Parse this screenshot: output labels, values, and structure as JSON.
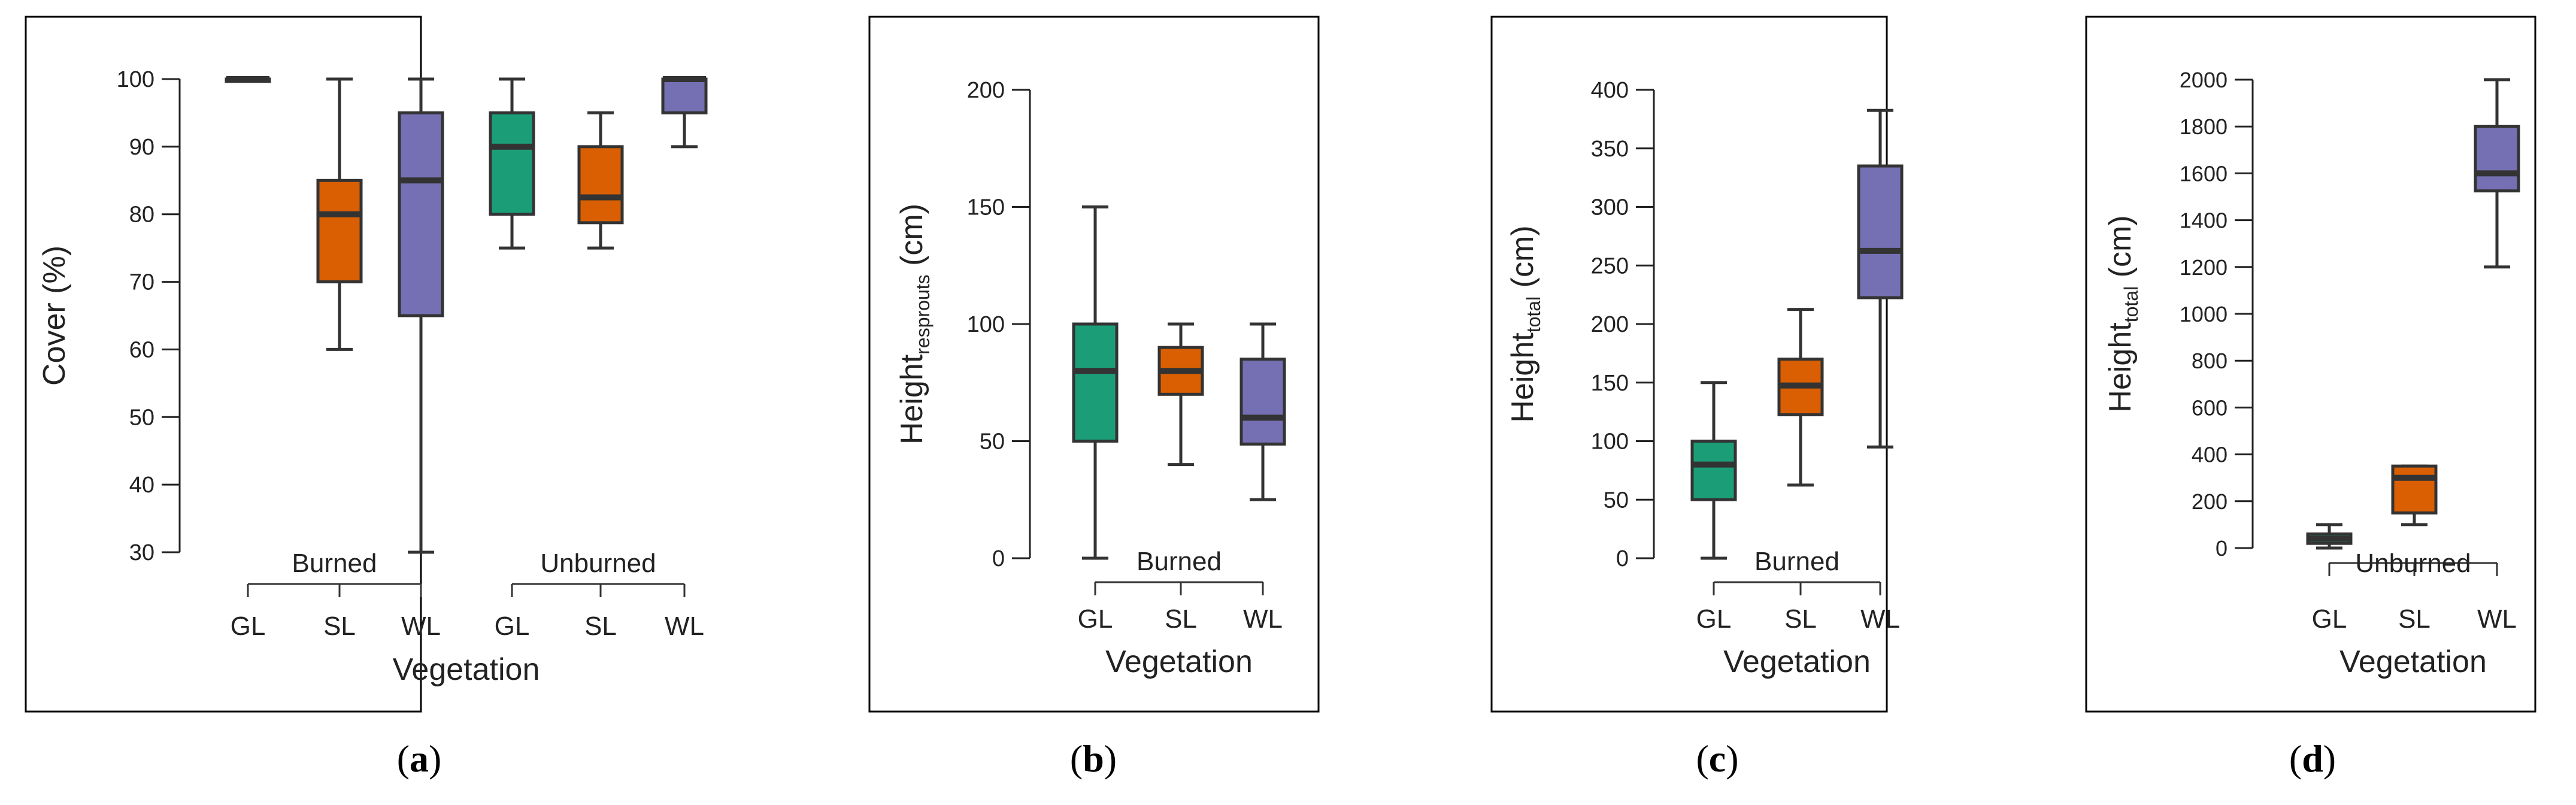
{
  "colors": {
    "GL": "#1b9e77",
    "SL": "#d95f02",
    "WL": "#7570b3",
    "stroke": "#333333",
    "frame": "#000000"
  },
  "chart_data": [
    {
      "panel": "a",
      "type": "boxplot",
      "ylabel": "Cover (%)",
      "ylabel_sub": "",
      "xlabel": "Vegetation",
      "ylim": [
        30,
        100
      ],
      "yticks": [
        30,
        40,
        50,
        60,
        70,
        80,
        90,
        100
      ],
      "categories": [
        "GL",
        "SL",
        "WL",
        "GL",
        "SL",
        "WL"
      ],
      "groups": [
        {
          "label": "Burned",
          "from": 0,
          "to": 2
        },
        {
          "label": "Unburned",
          "from": 3,
          "to": 5
        }
      ],
      "boxes": [
        {
          "category": "GL",
          "group": "Burned",
          "min": 100,
          "q1": 100,
          "median": 100,
          "q3": 100,
          "max": 100
        },
        {
          "category": "SL",
          "group": "Burned",
          "min": 60,
          "q1": 70,
          "median": 80,
          "q3": 85,
          "max": 100
        },
        {
          "category": "WL",
          "group": "Burned",
          "min": 30,
          "q1": 65,
          "median": 85,
          "q3": 95,
          "max": 100
        },
        {
          "category": "GL",
          "group": "Unburned",
          "min": 75,
          "q1": 80,
          "median": 90,
          "q3": 95,
          "max": 100
        },
        {
          "category": "SL",
          "group": "Unburned",
          "min": 75,
          "q1": 78.75,
          "median": 82.5,
          "q3": 90,
          "max": 95
        },
        {
          "category": "WL",
          "group": "Unburned",
          "min": 90,
          "q1": 95,
          "median": 100,
          "q3": 100,
          "max": 100
        }
      ]
    },
    {
      "panel": "b",
      "type": "boxplot",
      "ylabel": "Height",
      "ylabel_sub": "resprouts",
      "ylabel_unit": " (cm)",
      "xlabel": "Vegetation",
      "ylim": [
        0,
        200
      ],
      "yticks": [
        0,
        50,
        100,
        150,
        200
      ],
      "categories": [
        "GL",
        "SL",
        "WL"
      ],
      "groups": [
        {
          "label": "Burned",
          "from": 0,
          "to": 2
        }
      ],
      "boxes": [
        {
          "category": "GL",
          "group": "Burned",
          "min": 0,
          "q1": 50,
          "median": 80,
          "q3": 100,
          "max": 150
        },
        {
          "category": "SL",
          "group": "Burned",
          "min": 40,
          "q1": 70,
          "median": 80,
          "q3": 90,
          "max": 100
        },
        {
          "category": "WL",
          "group": "Burned",
          "min": 25,
          "q1": 48.75,
          "median": 60,
          "q3": 85,
          "max": 100
        }
      ]
    },
    {
      "panel": "c",
      "type": "boxplot",
      "ylabel": "Height",
      "ylabel_sub": "total",
      "ylabel_unit": " (cm)",
      "xlabel": "Vegetation",
      "ylim": [
        0,
        400
      ],
      "yticks": [
        0,
        50,
        100,
        150,
        200,
        250,
        300,
        350,
        400
      ],
      "categories": [
        "GL",
        "SL",
        "WL"
      ],
      "groups": [
        {
          "label": "Burned",
          "from": 0,
          "to": 2
        }
      ],
      "boxes": [
        {
          "category": "GL",
          "group": "Burned",
          "min": 0,
          "q1": 50,
          "median": 80,
          "q3": 100,
          "max": 150
        },
        {
          "category": "SL",
          "group": "Burned",
          "min": 62.5,
          "q1": 122.5,
          "median": 147.5,
          "q3": 170,
          "max": 212.5
        },
        {
          "category": "WL",
          "group": "Burned",
          "min": 95,
          "q1": 222.5,
          "median": 262.5,
          "q3": 335,
          "max": 382.5
        }
      ]
    },
    {
      "panel": "d",
      "type": "boxplot",
      "ylabel": "Height",
      "ylabel_sub": "total",
      "ylabel_unit": " (cm)",
      "xlabel": "Vegetation",
      "ylim": [
        0,
        2000
      ],
      "yticks": [
        0,
        200,
        400,
        600,
        800,
        1000,
        1200,
        1400,
        1600,
        1800,
        2000
      ],
      "categories": [
        "GL",
        "SL",
        "WL"
      ],
      "groups": [
        {
          "label": "Unburned",
          "from": 0,
          "to": 2
        }
      ],
      "boxes": [
        {
          "category": "GL",
          "group": "Unburned",
          "min": 0,
          "q1": 20,
          "median": 40,
          "q3": 60,
          "max": 100
        },
        {
          "category": "SL",
          "group": "Unburned",
          "min": 100,
          "q1": 150,
          "median": 300,
          "q3": 350,
          "max": 350
        },
        {
          "category": "WL",
          "group": "Unburned",
          "min": 1200,
          "q1": 1525,
          "median": 1600,
          "q3": 1800,
          "max": 2000
        }
      ]
    }
  ],
  "panel_labels": [
    "a",
    "b",
    "c",
    "d"
  ]
}
